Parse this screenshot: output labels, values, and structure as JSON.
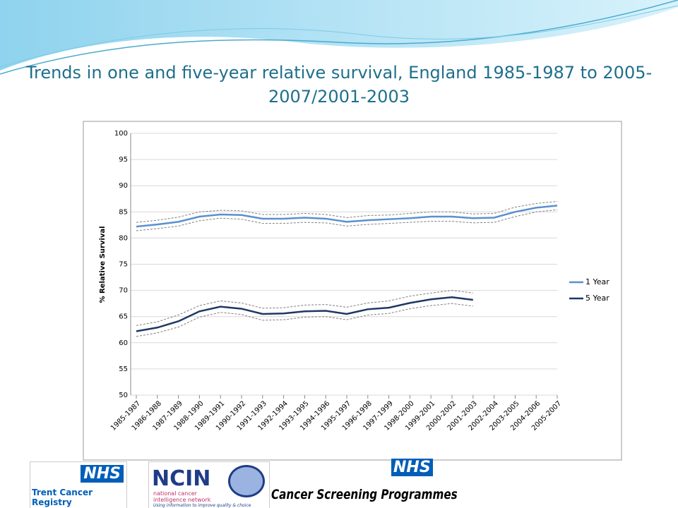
{
  "chart_data": {
    "type": "line",
    "title": "Trends in one and five-year relative survival, England 1985-1987 to 2005-2007/2001-2003",
    "y_label": "% Relative Survival",
    "categories": [
      "1985-1987",
      "1986-1988",
      "1987-1989",
      "1988-1990",
      "1989-1991",
      "1990-1992",
      "1991-1993",
      "1992-1994",
      "1993-1995",
      "1994-1996",
      "1995-1997",
      "1996-1998",
      "1997-1999",
      "1998-2000",
      "1999-2001",
      "2000-2002",
      "2001-2003",
      "2002-2004",
      "2003-2005",
      "2004-2006",
      "2005-2007"
    ],
    "ylim": [
      50,
      100
    ],
    "yticks": [
      50,
      55,
      60,
      65,
      70,
      75,
      80,
      85,
      90,
      95,
      100
    ],
    "grid": true,
    "legend": "right",
    "band_color": "#7f7f7f",
    "series": [
      {
        "name": "1 Year",
        "color": "#5b8fd0",
        "values": [
          82.2,
          82.6,
          83.1,
          84.1,
          84.5,
          84.4,
          83.7,
          83.7,
          83.9,
          83.7,
          83.1,
          83.4,
          83.6,
          83.8,
          84.1,
          84.1,
          83.8,
          83.9,
          85.0,
          85.8,
          86.2
        ],
        "upper": [
          83.0,
          83.4,
          84.0,
          85.0,
          85.3,
          85.2,
          84.5,
          84.5,
          84.7,
          84.5,
          83.9,
          84.3,
          84.4,
          84.7,
          85.0,
          85.0,
          84.6,
          84.7,
          85.9,
          86.6,
          87.0
        ],
        "lower": [
          81.4,
          81.8,
          82.3,
          83.3,
          83.8,
          83.6,
          82.8,
          82.8,
          83.0,
          82.9,
          82.3,
          82.6,
          82.8,
          83.0,
          83.2,
          83.2,
          82.9,
          83.0,
          84.1,
          85.0,
          85.4
        ]
      },
      {
        "name": "5 Year",
        "color": "#1f3864",
        "values": [
          62.2,
          62.9,
          64.1,
          66.0,
          66.9,
          66.5,
          65.5,
          65.6,
          66.0,
          66.1,
          65.5,
          66.4,
          66.7,
          67.6,
          68.3,
          68.7,
          68.2,
          null,
          null,
          null,
          null
        ],
        "upper": [
          63.3,
          64.0,
          65.3,
          67.1,
          68.0,
          67.6,
          66.6,
          66.7,
          67.2,
          67.3,
          66.8,
          67.6,
          68.0,
          68.9,
          69.5,
          70.0,
          69.5,
          null,
          null,
          null,
          null
        ],
        "lower": [
          61.2,
          61.9,
          63.0,
          64.9,
          65.8,
          65.4,
          64.3,
          64.4,
          64.9,
          65.0,
          64.4,
          65.3,
          65.6,
          66.5,
          67.1,
          67.5,
          67.0,
          null,
          null,
          null,
          null
        ]
      }
    ]
  },
  "logos": {
    "trent_nhs": "NHS",
    "trent": "Trent Cancer Registry",
    "ncin": "NCIN",
    "ncin_sub": "national cancer intelligence network",
    "ncin_tag": "Using information to improve quality & choice",
    "screening_nhs": "NHS",
    "screening": "Cancer Screening Programmes"
  }
}
